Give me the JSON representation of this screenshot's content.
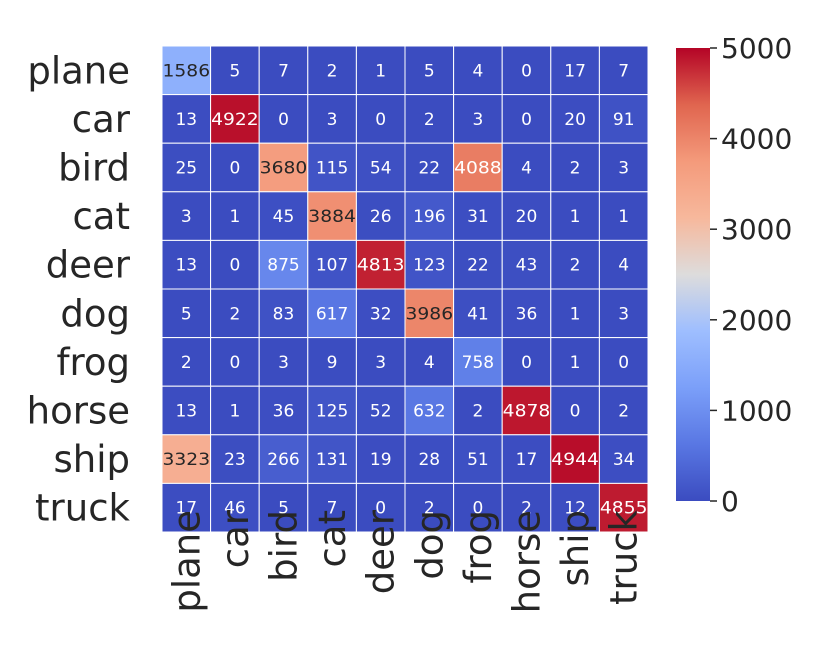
{
  "chart_data": {
    "type": "heatmap",
    "title": "",
    "row_labels": [
      "plane",
      "car",
      "bird",
      "cat",
      "deer",
      "dog",
      "frog",
      "horse",
      "ship",
      "truck"
    ],
    "col_labels": [
      "plane",
      "car",
      "bird",
      "cat",
      "deer",
      "dog",
      "frog",
      "horse",
      "ship",
      "truck"
    ],
    "matrix": [
      [
        1586,
        5,
        7,
        2,
        1,
        5,
        4,
        0,
        17,
        7
      ],
      [
        13,
        4922,
        0,
        3,
        0,
        2,
        3,
        0,
        20,
        91
      ],
      [
        25,
        0,
        3680,
        115,
        54,
        22,
        4088,
        4,
        2,
        3
      ],
      [
        3,
        1,
        45,
        3884,
        26,
        196,
        31,
        20,
        1,
        1
      ],
      [
        13,
        0,
        875,
        107,
        4813,
        123,
        22,
        43,
        2,
        4
      ],
      [
        5,
        2,
        83,
        617,
        32,
        3986,
        41,
        36,
        1,
        3
      ],
      [
        2,
        0,
        3,
        9,
        3,
        4,
        758,
        0,
        1,
        0
      ],
      [
        13,
        1,
        36,
        125,
        52,
        632,
        2,
        4878,
        0,
        2
      ],
      [
        3323,
        23,
        266,
        131,
        19,
        28,
        51,
        17,
        4944,
        34
      ],
      [
        17,
        46,
        5,
        7,
        0,
        2,
        0,
        2,
        12,
        4855
      ]
    ],
    "colormap": "coolwarm",
    "vmin": 0,
    "vmax": 5000,
    "colorbar_ticks": [
      0,
      1000,
      2000,
      3000,
      4000,
      5000
    ],
    "xlabel": "",
    "ylabel": ""
  }
}
